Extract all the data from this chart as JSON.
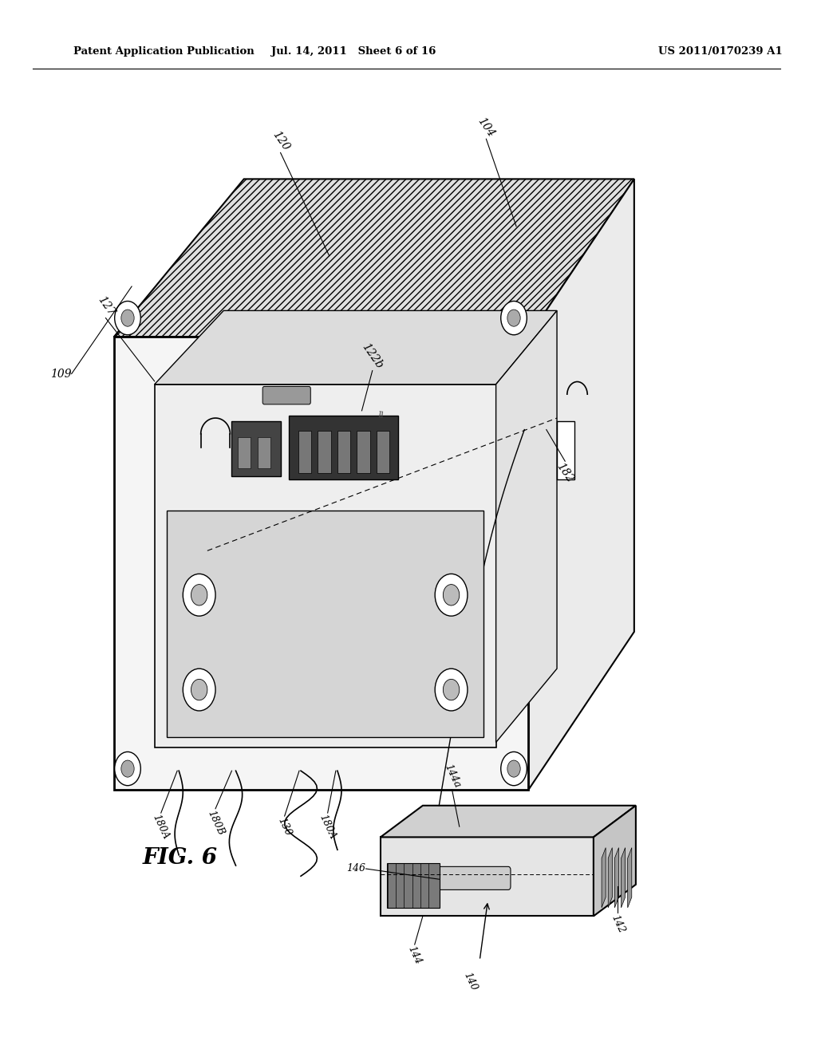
{
  "background_color": "#ffffff",
  "header_left": "Patent Application Publication",
  "header_center": "Jul. 14, 2011   Sheet 6 of 16",
  "header_right": "US 2011/0170239 A1",
  "figure_label": "FIG. 6"
}
